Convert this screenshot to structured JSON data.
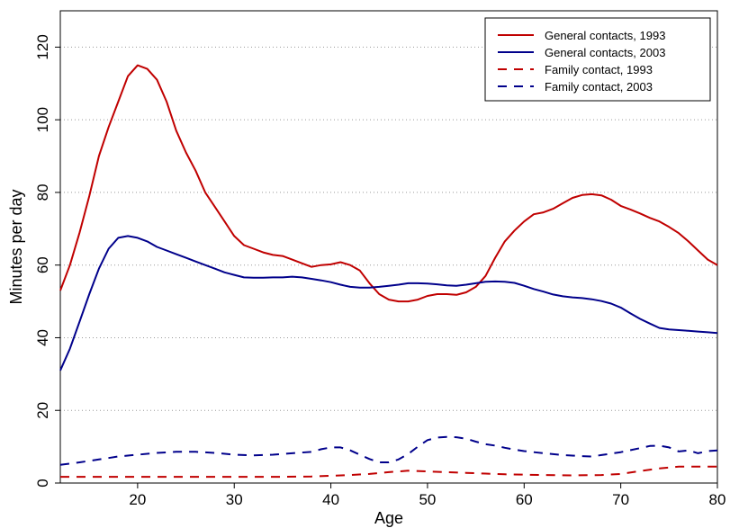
{
  "chart_data": {
    "type": "line",
    "xlabel": "Age",
    "ylabel": "Minutes per day",
    "xlim": [
      12,
      80
    ],
    "ylim": [
      0,
      130
    ],
    "x_ticks": [
      20,
      30,
      40,
      50,
      60,
      70,
      80
    ],
    "y_ticks": [
      0,
      20,
      40,
      60,
      80,
      100,
      120
    ],
    "grid": "horizontal dotted",
    "legend_position": "top-right",
    "series": [
      {
        "name": "General contacts, 1993",
        "color": "#c00000",
        "dash": "solid",
        "points": [
          [
            12,
            53
          ],
          [
            13,
            60
          ],
          [
            14,
            69
          ],
          [
            15,
            79
          ],
          [
            16,
            90
          ],
          [
            17,
            98
          ],
          [
            18,
            105
          ],
          [
            19,
            112
          ],
          [
            20,
            115
          ],
          [
            21,
            114
          ],
          [
            22,
            111
          ],
          [
            23,
            105
          ],
          [
            24,
            97
          ],
          [
            25,
            91
          ],
          [
            26,
            86
          ],
          [
            27,
            80
          ],
          [
            28,
            76
          ],
          [
            29,
            72
          ],
          [
            30,
            68
          ],
          [
            31,
            65.5
          ],
          [
            32,
            64.5
          ],
          [
            33,
            63.5
          ],
          [
            34,
            62.8
          ],
          [
            35,
            62.5
          ],
          [
            36,
            61.5
          ],
          [
            37,
            60.5
          ],
          [
            38,
            59.5
          ],
          [
            39,
            60
          ],
          [
            40,
            60.2
          ],
          [
            41,
            60.8
          ],
          [
            42,
            60
          ],
          [
            43,
            58.5
          ],
          [
            44,
            55
          ],
          [
            45,
            52
          ],
          [
            46,
            50.5
          ],
          [
            47,
            50
          ],
          [
            48,
            50
          ],
          [
            49,
            50.5
          ],
          [
            50,
            51.5
          ],
          [
            51,
            52
          ],
          [
            52,
            52
          ],
          [
            53,
            51.8
          ],
          [
            54,
            52.5
          ],
          [
            55,
            54
          ],
          [
            56,
            57
          ],
          [
            57,
            62
          ],
          [
            58,
            66.5
          ],
          [
            59,
            69.5
          ],
          [
            60,
            72
          ],
          [
            61,
            74
          ],
          [
            62,
            74.5
          ],
          [
            63,
            75.5
          ],
          [
            64,
            77
          ],
          [
            65,
            78.5
          ],
          [
            66,
            79.3
          ],
          [
            67,
            79.5
          ],
          [
            68,
            79.2
          ],
          [
            69,
            78
          ],
          [
            70,
            76.3
          ],
          [
            71,
            75.3
          ],
          [
            72,
            74.2
          ],
          [
            73,
            73
          ],
          [
            74,
            72
          ],
          [
            75,
            70.5
          ],
          [
            76,
            68.8
          ],
          [
            77,
            66.5
          ],
          [
            78,
            64
          ],
          [
            79,
            61.5
          ],
          [
            80,
            60
          ]
        ]
      },
      {
        "name": "General contacts, 2003",
        "color": "#00008b",
        "dash": "solid",
        "points": [
          [
            12,
            31
          ],
          [
            13,
            37
          ],
          [
            14,
            44.5
          ],
          [
            15,
            52
          ],
          [
            16,
            59
          ],
          [
            17,
            64.5
          ],
          [
            18,
            67.5
          ],
          [
            19,
            68
          ],
          [
            20,
            67.5
          ],
          [
            21,
            66.5
          ],
          [
            22,
            65
          ],
          [
            23,
            64
          ],
          [
            24,
            63
          ],
          [
            25,
            62
          ],
          [
            26,
            61
          ],
          [
            27,
            60
          ],
          [
            28,
            59
          ],
          [
            29,
            58
          ],
          [
            30,
            57.3
          ],
          [
            31,
            56.6
          ],
          [
            32,
            56.5
          ],
          [
            33,
            56.5
          ],
          [
            34,
            56.6
          ],
          [
            35,
            56.6
          ],
          [
            36,
            56.8
          ],
          [
            37,
            56.6
          ],
          [
            38,
            56.2
          ],
          [
            39,
            55.8
          ],
          [
            40,
            55.3
          ],
          [
            41,
            54.6
          ],
          [
            42,
            54
          ],
          [
            43,
            53.8
          ],
          [
            44,
            53.8
          ],
          [
            45,
            54
          ],
          [
            46,
            54.3
          ],
          [
            47,
            54.6
          ],
          [
            48,
            55
          ],
          [
            49,
            55
          ],
          [
            50,
            54.9
          ],
          [
            51,
            54.7
          ],
          [
            52,
            54.4
          ],
          [
            53,
            54.3
          ],
          [
            54,
            54.6
          ],
          [
            55,
            55
          ],
          [
            56,
            55.4
          ],
          [
            57,
            55.5
          ],
          [
            58,
            55.4
          ],
          [
            59,
            55.1
          ],
          [
            60,
            54.3
          ],
          [
            61,
            53.4
          ],
          [
            62,
            52.7
          ],
          [
            63,
            51.9
          ],
          [
            64,
            51.4
          ],
          [
            65,
            51.1
          ],
          [
            66,
            50.9
          ],
          [
            67,
            50.6
          ],
          [
            68,
            50.1
          ],
          [
            69,
            49.4
          ],
          [
            70,
            48.3
          ],
          [
            71,
            46.7
          ],
          [
            72,
            45.2
          ],
          [
            73,
            43.9
          ],
          [
            74,
            42.7
          ],
          [
            75,
            42.3
          ],
          [
            76,
            42.1
          ],
          [
            77,
            41.9
          ],
          [
            78,
            41.7
          ],
          [
            79,
            41.5
          ],
          [
            80,
            41.3
          ]
        ]
      },
      {
        "name": "Family contact, 1993",
        "color": "#c00000",
        "dash": "dashed",
        "points": [
          [
            12,
            1.7
          ],
          [
            15,
            1.7
          ],
          [
            20,
            1.7
          ],
          [
            25,
            1.7
          ],
          [
            30,
            1.7
          ],
          [
            35,
            1.7
          ],
          [
            38,
            1.8
          ],
          [
            40,
            2
          ],
          [
            42,
            2.2
          ],
          [
            44,
            2.5
          ],
          [
            46,
            3
          ],
          [
            48,
            3.4
          ],
          [
            50,
            3.2
          ],
          [
            52,
            3
          ],
          [
            54,
            2.8
          ],
          [
            56,
            2.6
          ],
          [
            58,
            2.4
          ],
          [
            60,
            2.3
          ],
          [
            62,
            2.2
          ],
          [
            65,
            2.1
          ],
          [
            68,
            2.2
          ],
          [
            70,
            2.5
          ],
          [
            72,
            3.3
          ],
          [
            74,
            4
          ],
          [
            76,
            4.5
          ],
          [
            78,
            4.5
          ],
          [
            80,
            4.5
          ]
        ]
      },
      {
        "name": "Family contact, 2003",
        "color": "#00008b",
        "dash": "dashed",
        "points": [
          [
            12,
            5
          ],
          [
            14,
            5.7
          ],
          [
            16,
            6.5
          ],
          [
            18,
            7.3
          ],
          [
            20,
            7.8
          ],
          [
            22,
            8.3
          ],
          [
            24,
            8.6
          ],
          [
            26,
            8.6
          ],
          [
            28,
            8.3
          ],
          [
            30,
            7.8
          ],
          [
            32,
            7.6
          ],
          [
            34,
            7.8
          ],
          [
            36,
            8.2
          ],
          [
            38,
            8.6
          ],
          [
            39,
            9.3
          ],
          [
            40,
            9.8
          ],
          [
            41,
            9.8
          ],
          [
            42,
            9
          ],
          [
            43,
            7.8
          ],
          [
            44,
            6.6
          ],
          [
            45,
            5.7
          ],
          [
            46,
            5.7
          ],
          [
            47,
            6.5
          ],
          [
            48,
            8
          ],
          [
            49,
            10
          ],
          [
            50,
            11.8
          ],
          [
            51,
            12.5
          ],
          [
            52,
            12.7
          ],
          [
            53,
            12.6
          ],
          [
            54,
            12.2
          ],
          [
            55,
            11.4
          ],
          [
            56,
            10.7
          ],
          [
            57,
            10.3
          ],
          [
            58,
            9.7
          ],
          [
            59,
            9.2
          ],
          [
            60,
            8.8
          ],
          [
            62,
            8.2
          ],
          [
            64,
            7.7
          ],
          [
            66,
            7.4
          ],
          [
            67,
            7.3
          ],
          [
            68,
            7.7
          ],
          [
            70,
            8.5
          ],
          [
            72,
            9.6
          ],
          [
            73,
            10.2
          ],
          [
            74,
            10.3
          ],
          [
            75,
            9.8
          ],
          [
            76,
            8.7
          ],
          [
            77,
            9
          ],
          [
            78,
            8.2
          ],
          [
            79,
            8.8
          ],
          [
            80,
            9
          ]
        ]
      }
    ]
  }
}
